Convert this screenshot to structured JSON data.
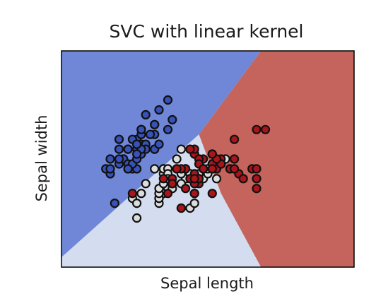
{
  "chart_data": {
    "type": "scatter",
    "title": "SVC with linear kernel",
    "xlabel": "Sepal length",
    "ylabel": "Sepal width",
    "xlim": [
      3.3,
      9.9
    ],
    "ylim": [
      1.0,
      5.4
    ],
    "ticks": "none",
    "grid": false,
    "legend": "none",
    "region_colors": [
      "#6f87d6",
      "#d3ddef",
      "#c4645c"
    ],
    "point_colors": [
      "#3852b8",
      "#dddddd",
      "#a8151b"
    ],
    "decision_regions": [
      {
        "class": 0,
        "polygon": [
          [
            3.3,
            1.2
          ],
          [
            3.3,
            5.4
          ],
          [
            7.8,
            5.4
          ],
          [
            6.4,
            3.7
          ]
        ]
      },
      {
        "class": 1,
        "polygon": [
          [
            3.3,
            1.0
          ],
          [
            3.3,
            1.2
          ],
          [
            6.4,
            3.7
          ],
          [
            6.9,
            2.5
          ],
          [
            7.8,
            1.0
          ]
        ]
      },
      {
        "class": 2,
        "polygon": [
          [
            7.8,
            1.0
          ],
          [
            6.9,
            2.5
          ],
          [
            6.4,
            3.7
          ],
          [
            7.8,
            5.4
          ],
          [
            9.9,
            5.4
          ],
          [
            9.9,
            1.0
          ]
        ]
      }
    ],
    "series": [
      {
        "class": 0,
        "points": [
          [
            5.1,
            3.5
          ],
          [
            4.9,
            3.0
          ],
          [
            4.7,
            3.2
          ],
          [
            4.6,
            3.1
          ],
          [
            5.0,
            3.6
          ],
          [
            5.4,
            3.9
          ],
          [
            4.6,
            3.4
          ],
          [
            5.0,
            3.4
          ],
          [
            4.4,
            2.9
          ],
          [
            4.9,
            3.1
          ],
          [
            5.4,
            3.7
          ],
          [
            4.8,
            3.4
          ],
          [
            4.8,
            3.0
          ],
          [
            4.3,
            3.0
          ],
          [
            5.8,
            4.0
          ],
          [
            5.7,
            4.4
          ],
          [
            5.4,
            3.9
          ],
          [
            5.1,
            3.5
          ],
          [
            5.7,
            3.8
          ],
          [
            5.1,
            3.8
          ],
          [
            5.4,
            3.4
          ],
          [
            5.1,
            3.7
          ],
          [
            4.6,
            3.6
          ],
          [
            5.1,
            3.3
          ],
          [
            4.8,
            3.4
          ],
          [
            5.0,
            3.0
          ],
          [
            5.0,
            3.4
          ],
          [
            5.2,
            3.5
          ],
          [
            5.2,
            3.4
          ],
          [
            4.7,
            3.2
          ],
          [
            4.8,
            3.1
          ],
          [
            5.4,
            3.4
          ],
          [
            5.2,
            4.1
          ],
          [
            5.5,
            4.2
          ],
          [
            4.9,
            3.1
          ],
          [
            5.0,
            3.2
          ],
          [
            5.5,
            3.5
          ],
          [
            4.9,
            3.6
          ],
          [
            4.4,
            3.0
          ],
          [
            5.1,
            3.4
          ],
          [
            5.0,
            3.5
          ],
          [
            4.5,
            2.3
          ],
          [
            4.4,
            3.2
          ],
          [
            5.0,
            3.5
          ],
          [
            5.1,
            3.8
          ],
          [
            4.8,
            3.0
          ],
          [
            5.1,
            3.8
          ],
          [
            4.6,
            3.2
          ],
          [
            5.3,
            3.7
          ],
          [
            5.0,
            3.3
          ]
        ]
      },
      {
        "class": 1,
        "points": [
          [
            7.0,
            3.2
          ],
          [
            6.4,
            3.2
          ],
          [
            6.9,
            3.1
          ],
          [
            5.5,
            2.3
          ],
          [
            6.5,
            2.8
          ],
          [
            5.7,
            2.8
          ],
          [
            6.3,
            3.3
          ],
          [
            4.9,
            2.4
          ],
          [
            6.6,
            2.9
          ],
          [
            5.2,
            2.7
          ],
          [
            5.0,
            2.0
          ],
          [
            5.9,
            3.0
          ],
          [
            6.0,
            2.2
          ],
          [
            6.1,
            2.9
          ],
          [
            5.6,
            2.9
          ],
          [
            6.7,
            3.1
          ],
          [
            5.6,
            3.0
          ],
          [
            5.8,
            2.7
          ],
          [
            6.2,
            2.2
          ],
          [
            5.6,
            2.5
          ],
          [
            5.9,
            3.2
          ],
          [
            6.1,
            2.8
          ],
          [
            6.3,
            2.5
          ],
          [
            6.1,
            2.8
          ],
          [
            6.4,
            2.9
          ],
          [
            6.6,
            3.0
          ],
          [
            6.8,
            2.8
          ],
          [
            6.7,
            3.0
          ],
          [
            6.0,
            2.9
          ],
          [
            5.7,
            2.6
          ],
          [
            5.5,
            2.4
          ],
          [
            5.5,
            2.4
          ],
          [
            5.8,
            2.7
          ],
          [
            6.0,
            2.7
          ],
          [
            5.4,
            3.0
          ],
          [
            6.0,
            3.4
          ],
          [
            6.7,
            3.1
          ],
          [
            6.3,
            2.3
          ],
          [
            5.6,
            3.0
          ],
          [
            5.5,
            2.5
          ],
          [
            5.5,
            2.6
          ],
          [
            6.1,
            3.0
          ],
          [
            5.8,
            2.6
          ],
          [
            5.0,
            2.3
          ],
          [
            5.6,
            2.7
          ],
          [
            5.7,
            3.0
          ],
          [
            5.7,
            2.9
          ],
          [
            6.2,
            2.9
          ],
          [
            5.1,
            2.5
          ],
          [
            5.7,
            2.8
          ]
        ]
      },
      {
        "class": 2,
        "points": [
          [
            6.3,
            3.3
          ],
          [
            5.8,
            2.7
          ],
          [
            7.1,
            3.0
          ],
          [
            6.3,
            2.9
          ],
          [
            6.5,
            3.0
          ],
          [
            7.6,
            3.0
          ],
          [
            4.9,
            2.5
          ],
          [
            7.3,
            2.9
          ],
          [
            6.7,
            2.5
          ],
          [
            7.2,
            3.6
          ],
          [
            6.5,
            3.2
          ],
          [
            6.4,
            2.7
          ],
          [
            6.8,
            3.0
          ],
          [
            5.7,
            2.5
          ],
          [
            5.8,
            2.8
          ],
          [
            6.4,
            3.2
          ],
          [
            6.5,
            3.0
          ],
          [
            7.7,
            3.8
          ],
          [
            7.7,
            2.6
          ],
          [
            6.0,
            2.2
          ],
          [
            6.9,
            3.2
          ],
          [
            5.6,
            2.8
          ],
          [
            7.7,
            2.8
          ],
          [
            6.3,
            2.7
          ],
          [
            6.7,
            3.3
          ],
          [
            7.2,
            3.2
          ],
          [
            6.2,
            2.8
          ],
          [
            6.1,
            3.0
          ],
          [
            6.4,
            2.8
          ],
          [
            7.2,
            3.0
          ],
          [
            7.4,
            2.8
          ],
          [
            7.9,
            3.8
          ],
          [
            6.4,
            2.8
          ],
          [
            6.3,
            2.8
          ],
          [
            6.1,
            2.6
          ],
          [
            7.7,
            3.0
          ],
          [
            6.3,
            3.4
          ],
          [
            6.4,
            3.1
          ],
          [
            6.0,
            3.0
          ],
          [
            6.9,
            3.1
          ],
          [
            6.7,
            3.1
          ],
          [
            6.9,
            3.1
          ],
          [
            5.8,
            2.7
          ],
          [
            6.8,
            3.2
          ],
          [
            6.7,
            3.3
          ],
          [
            6.7,
            3.0
          ],
          [
            6.3,
            2.5
          ],
          [
            6.5,
            3.0
          ],
          [
            6.2,
            3.4
          ],
          [
            5.9,
            3.0
          ]
        ]
      }
    ]
  }
}
